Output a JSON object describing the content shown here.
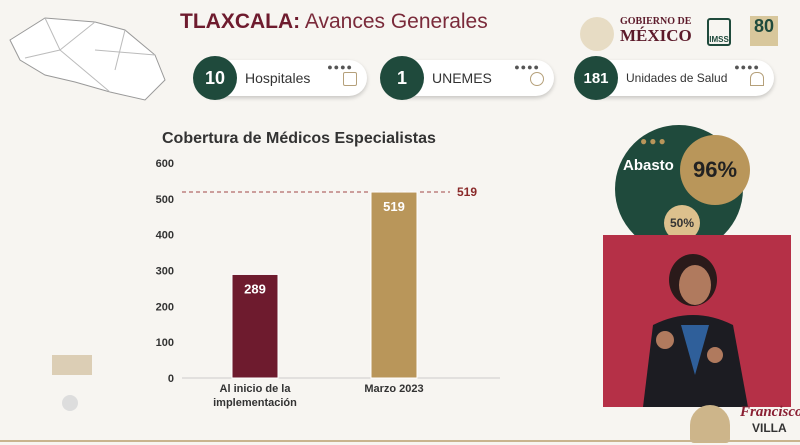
{
  "header": {
    "state": "TLAXCALA:",
    "title": " Avances Generales"
  },
  "stats": [
    {
      "value": "10",
      "label": "Hospitales",
      "icon": "hospital-icon"
    },
    {
      "value": "1",
      "label": "UNEMES",
      "icon": "doctor-icon"
    },
    {
      "value": "181",
      "label": "Unidades de Salud",
      "icon": "house-icon"
    }
  ],
  "logos": {
    "gob_line1": "GOBIERNO DE",
    "gob_line2": "MÉXICO",
    "imss": "IMSS",
    "anniv": "80",
    "footer": "Francisco",
    "footer2": "VILLA"
  },
  "abasto": {
    "label": "Abasto",
    "value": "96%",
    "secondary": "50%"
  },
  "colors": {
    "green": "#1f4a3c",
    "maroon": "#6e1b2e",
    "gold": "#b9965a",
    "video_bg": "#b53047"
  },
  "chart_data": {
    "type": "bar",
    "title": "Cobertura de Médicos Especialistas",
    "categories": [
      "Al inicio de la implementación",
      "Marzo 2023"
    ],
    "category_lines": [
      [
        "Al inicio de la",
        "implementación"
      ],
      [
        "Marzo 2023"
      ]
    ],
    "values": [
      289,
      519
    ],
    "value_labels": [
      "289",
      "519"
    ],
    "bar_colors": [
      "#6e1b2e",
      "#b9965a"
    ],
    "ylim": [
      0,
      600
    ],
    "yticks": [
      0,
      100,
      200,
      300,
      400,
      500,
      600
    ],
    "reference_line": {
      "value": 519,
      "label": "519"
    },
    "xlabel": "",
    "ylabel": ""
  }
}
